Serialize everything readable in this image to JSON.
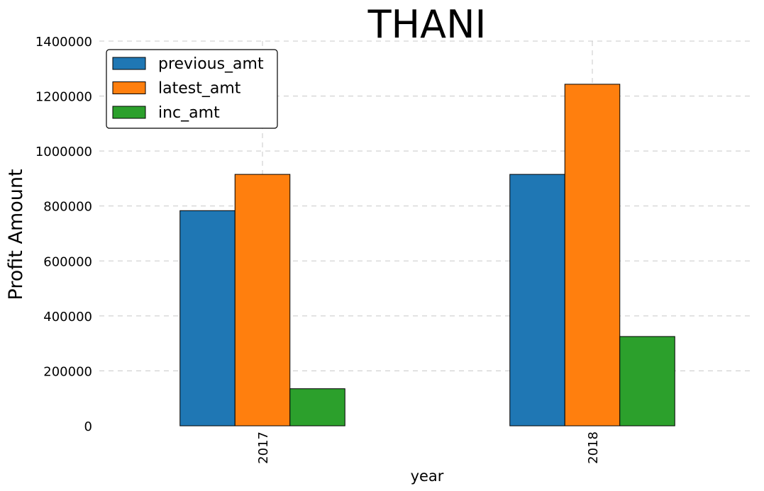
{
  "chart_data": {
    "type": "bar",
    "title": "THANI",
    "xlabel": "year",
    "ylabel": "Profit Amount",
    "categories": [
      "2017",
      "2018"
    ],
    "series": [
      {
        "name": "previous_amt",
        "color": "#1f77b4",
        "values": [
          783000,
          915000
        ]
      },
      {
        "name": "latest_amt",
        "color": "#ff7f0e",
        "values": [
          915000,
          1243000
        ]
      },
      {
        "name": "inc_amt",
        "color": "#2ca02c",
        "values": [
          135000,
          325000
        ]
      }
    ],
    "ylim": [
      0,
      1400000
    ],
    "yticks": [
      "0",
      "200000",
      "400000",
      "600000",
      "800000",
      "1000000",
      "1200000",
      "1400000"
    ],
    "ytick_values": [
      0,
      200000,
      400000,
      600000,
      800000,
      1000000,
      1200000,
      1400000
    ],
    "grid": true,
    "legend_position": "top-left"
  }
}
